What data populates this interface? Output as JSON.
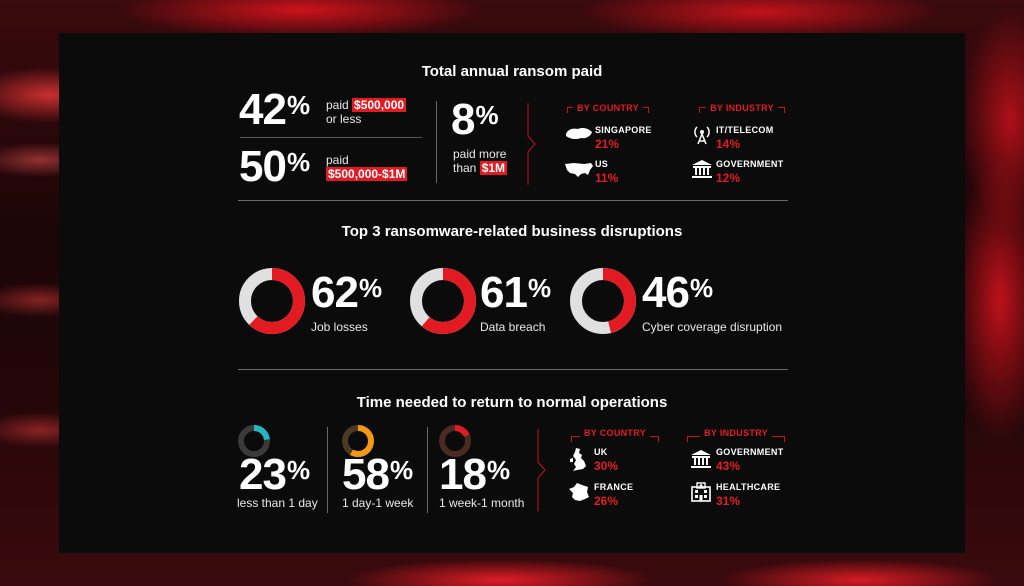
{
  "colors": {
    "accent": "#e21b23",
    "ring_bg": "#e0e0e0",
    "panel": "#0b0b0b"
  },
  "section1": {
    "title": "Total annual ransom paid",
    "stat_a": {
      "value": "42",
      "pct": "%",
      "label_prefix": "paid",
      "highlight": "$500,000",
      "label_suffix": "or less"
    },
    "stat_b": {
      "value": "50",
      "pct": "%",
      "label_prefix": "paid",
      "highlight": "$500,000-$1M"
    },
    "stat_c": {
      "value": "8",
      "pct": "%",
      "label_line1": "paid more",
      "label_prefix": "than",
      "highlight": "$1M"
    },
    "by_country": {
      "tag": "BY COUNTRY",
      "items": [
        {
          "name": "SINGAPORE",
          "value": "21%",
          "icon": "singapore-map-icon"
        },
        {
          "name": "US",
          "value": "11%",
          "icon": "us-map-icon"
        }
      ]
    },
    "by_industry": {
      "tag": "BY INDUSTRY",
      "items": [
        {
          "name": "IT/TELECOM",
          "value": "14%",
          "icon": "antenna-tower-icon"
        },
        {
          "name": "GOVERNMENT",
          "value": "12%",
          "icon": "government-building-icon"
        }
      ]
    }
  },
  "section2": {
    "title": "Top 3 ransomware-related business disruptions",
    "items": [
      {
        "value": "62",
        "pct": "%",
        "label": "Job losses"
      },
      {
        "value": "61",
        "pct": "%",
        "label": "Data breach"
      },
      {
        "value": "46",
        "pct": "%",
        "label": "Cyber coverage disruption"
      }
    ]
  },
  "section3": {
    "title": "Time needed to return to normal operations",
    "items": [
      {
        "value": "23",
        "pct": "%",
        "label": "less than 1 day",
        "color": "#27b5c4",
        "track": "#3a3a3a"
      },
      {
        "value": "58",
        "pct": "%",
        "label": "1 day-1 week",
        "color": "#f39a12",
        "track": "#4a3a22"
      },
      {
        "value": "18",
        "pct": "%",
        "label": "1 week-1 month",
        "color": "#e21b23",
        "track": "#4a2a22"
      }
    ],
    "by_country": {
      "tag": "BY COUNTRY",
      "items": [
        {
          "name": "UK",
          "value": "30%",
          "icon": "uk-map-icon"
        },
        {
          "name": "FRANCE",
          "value": "26%",
          "icon": "france-map-icon"
        }
      ]
    },
    "by_industry": {
      "tag": "BY INDUSTRY",
      "items": [
        {
          "name": "GOVERNMENT",
          "value": "43%",
          "icon": "government-building-icon"
        },
        {
          "name": "HEALTHCARE",
          "value": "31%",
          "icon": "hospital-building-icon"
        }
      ]
    }
  },
  "chart_data": [
    {
      "type": "pie",
      "title": "Top 3 ransomware-related business disruptions",
      "categories": [
        "Job losses",
        "Data breach",
        "Cyber coverage disruption"
      ],
      "values": [
        62,
        61,
        46
      ]
    },
    {
      "type": "pie",
      "title": "Time needed to return to normal operations",
      "categories": [
        "less than 1 day",
        "1 day-1 week",
        "1 week-1 month"
      ],
      "values": [
        23,
        58,
        18
      ]
    },
    {
      "type": "table",
      "title": "Total annual ransom paid",
      "categories": [
        "$500,000 or less",
        "$500,000-$1M",
        "more than $1M"
      ],
      "values": [
        42,
        50,
        8
      ]
    }
  ]
}
